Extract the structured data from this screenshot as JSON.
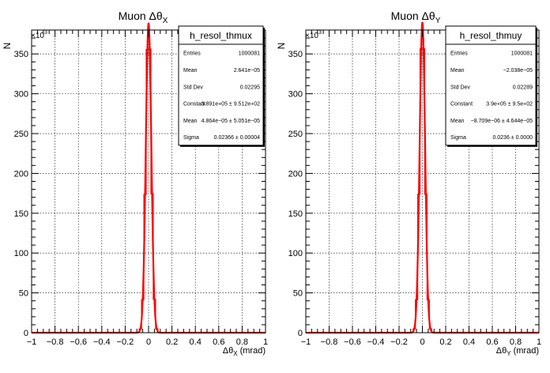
{
  "chart_data": [
    {
      "type": "histogram",
      "title": "Muon  Δθ",
      "title_sub": "X",
      "xlabel": "Δθ",
      "xlabel_sub": "X",
      "xlabel_unit": " (mrad)",
      "ylabel": "N",
      "y_exponent_base": "×10",
      "y_exponent": "3",
      "xlim": [
        -1,
        1
      ],
      "ylim": [
        0,
        380
      ],
      "grid": true,
      "x_ticks": [
        "−1",
        "−0.8",
        "−0.6",
        "−0.4",
        "−0.2",
        "0",
        "0.2",
        "0.4",
        "0.6",
        "0.8",
        "1"
      ],
      "y_ticks": [
        "0",
        "50",
        "100",
        "150",
        "200",
        "250",
        "300",
        "350"
      ],
      "line_color": "#ff0000",
      "fit": {
        "type": "gaussian",
        "constant": 389.1,
        "mean": 4.86e-05,
        "sigma": 0.02366
      },
      "stats": {
        "name": "h_resol_thmux",
        "rows": [
          {
            "label": "Entries",
            "value": "1000081"
          },
          {
            "label": "Mean",
            "value": "2.641e−05"
          },
          {
            "label": "Std Dev",
            "value": "0.02295"
          },
          {
            "label": "Constant",
            "value": "3.891e+05 ± 9.512e+02"
          },
          {
            "label": "Mean",
            "value": "4.864e−05 ± 5.051e−05"
          },
          {
            "label": "Sigma",
            "value": "0.02366 ± 0.00004"
          }
        ]
      }
    },
    {
      "type": "histogram",
      "title": "Muon  Δθ",
      "title_sub": "Y",
      "xlabel": "Δθ",
      "xlabel_sub": "Y",
      "xlabel_unit": " (mrad)",
      "ylabel": "N",
      "y_exponent_base": "×10",
      "y_exponent": "3",
      "xlim": [
        -1,
        1
      ],
      "ylim": [
        0,
        380
      ],
      "grid": true,
      "x_ticks": [
        "−1",
        "−0.8",
        "−0.6",
        "−0.4",
        "−0.2",
        "0",
        "0.2",
        "0.4",
        "0.6",
        "0.8",
        "1"
      ],
      "y_ticks": [
        "0",
        "50",
        "100",
        "150",
        "200",
        "250",
        "300",
        "350"
      ],
      "line_color": "#ff0000",
      "fit": {
        "type": "gaussian",
        "constant": 390.0,
        "mean": -8.7e-06,
        "sigma": 0.0236
      },
      "stats": {
        "name": "h_resol_thmuy",
        "rows": [
          {
            "label": "Entries",
            "value": "1000081"
          },
          {
            "label": "Mean",
            "value": "−2.038e−05"
          },
          {
            "label": "Std Dev",
            "value": "0.02289"
          },
          {
            "label": "Constant",
            "value": "3.9e+05 ± 9.5e+02"
          },
          {
            "label": "Mean",
            "value": "−8.709e−06 ± 4.644e−05"
          },
          {
            "label": "Sigma",
            "value": "0.0236 ± 0.0000"
          }
        ]
      }
    }
  ]
}
